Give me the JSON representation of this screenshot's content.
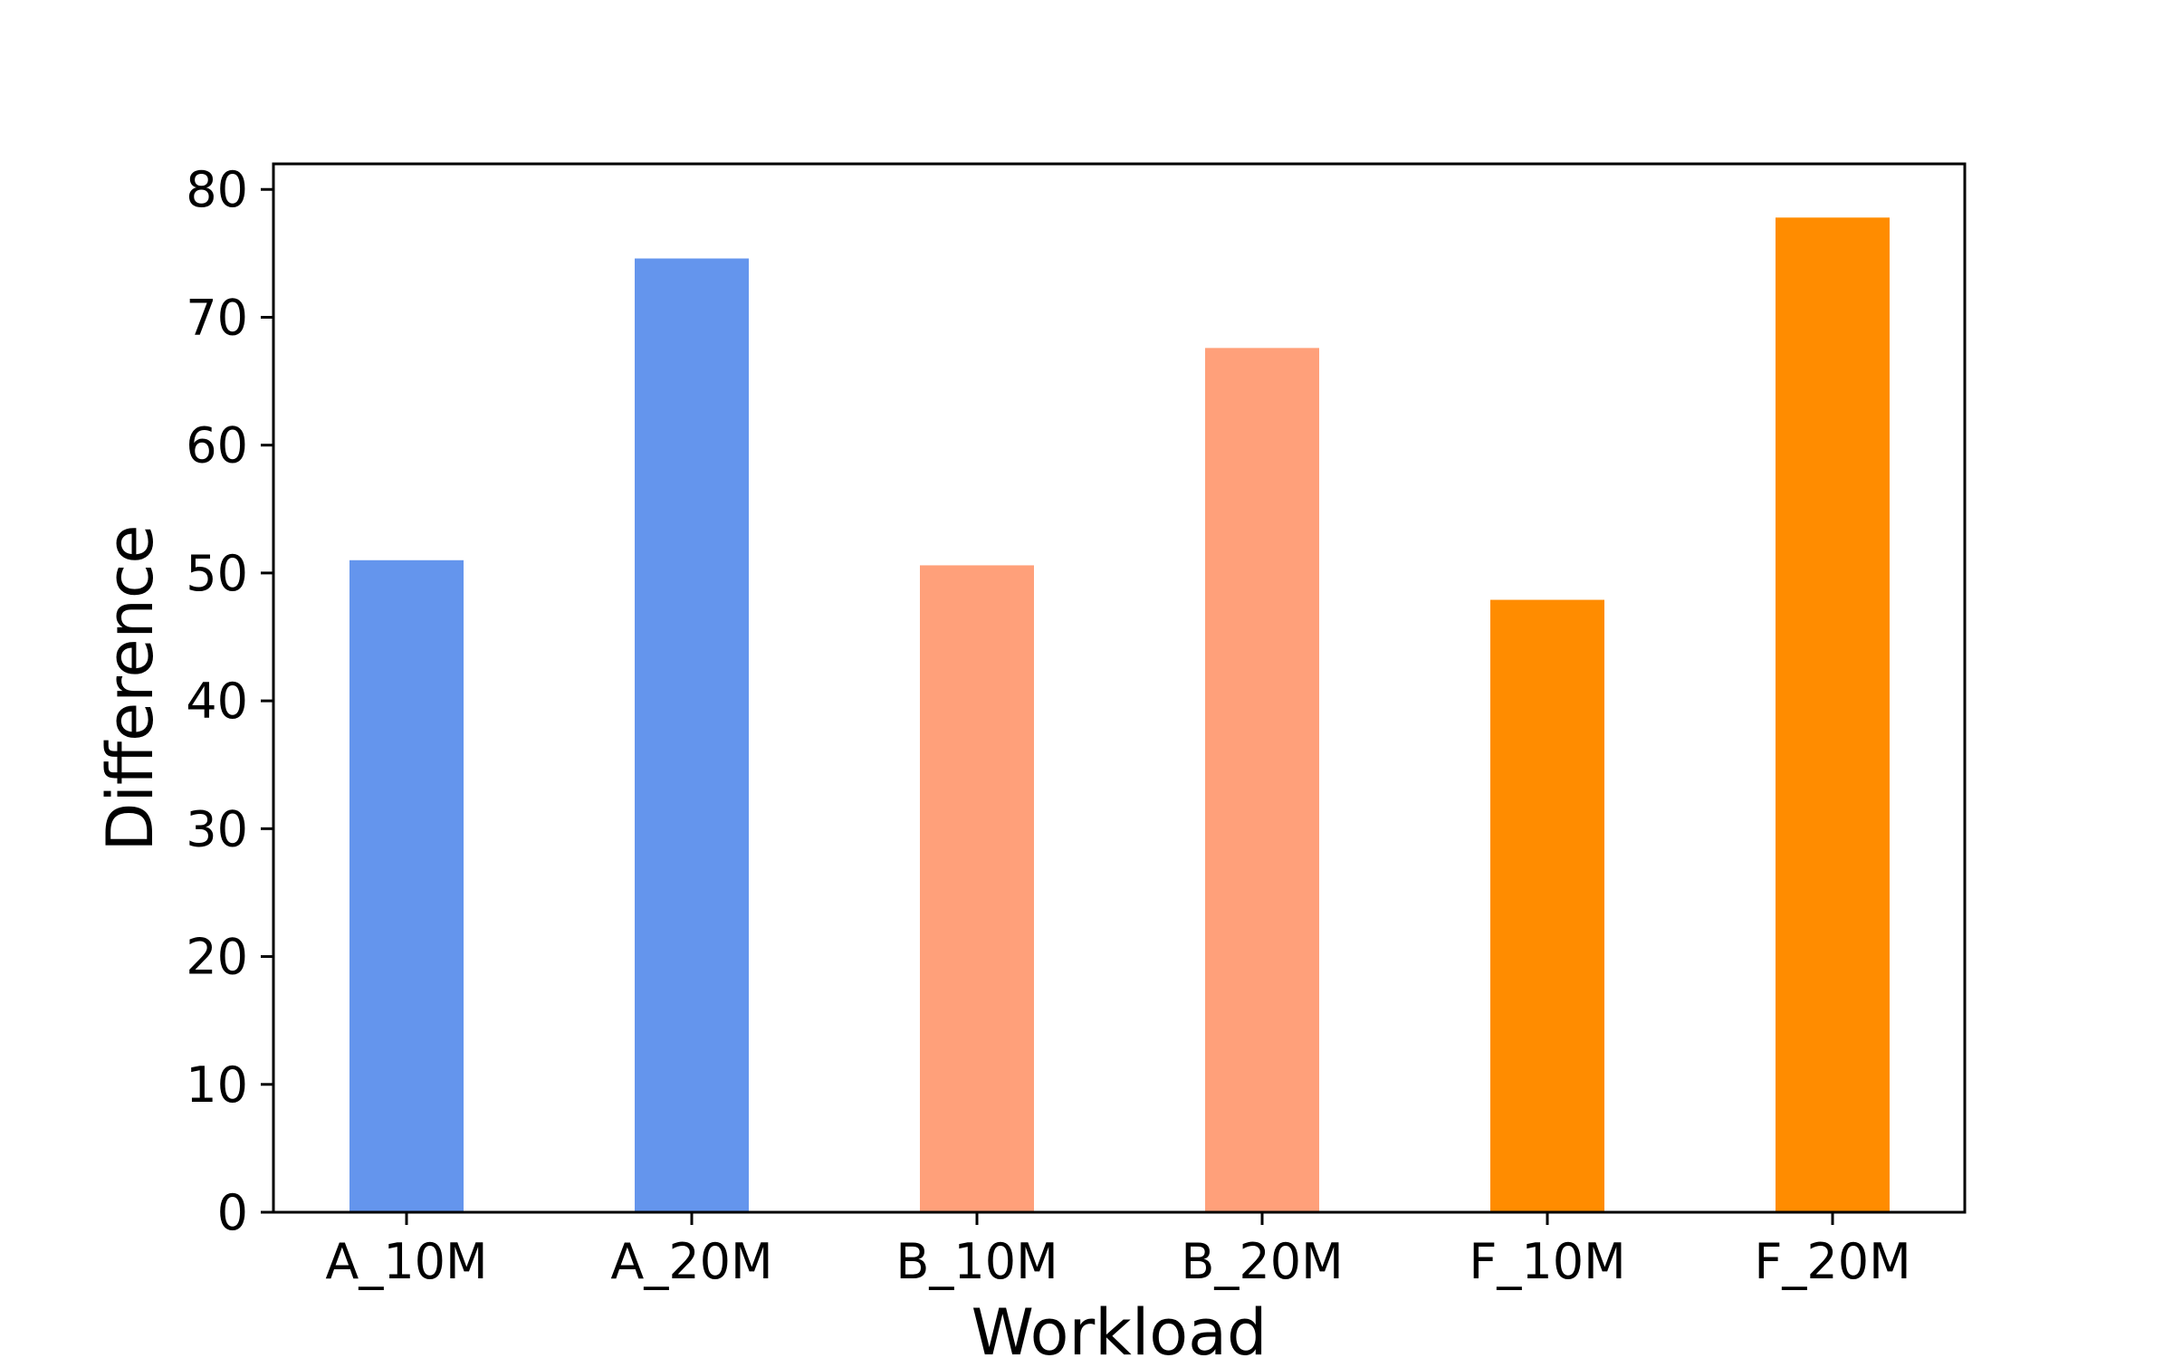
{
  "chart_data": {
    "type": "bar",
    "title": "",
    "xlabel": "Workload",
    "ylabel": "Difference",
    "categories": [
      "A_10M",
      "A_20M",
      "B_10M",
      "B_20M",
      "F_10M",
      "F_20M"
    ],
    "values": [
      51,
      74.6,
      50.6,
      67.6,
      47.9,
      77.8
    ],
    "bar_colors": [
      "#6495ED",
      "#6495ED",
      "#FFA07A",
      "#FFA07A",
      "#FF8C00",
      "#FF8C00"
    ],
    "ylim": [
      0,
      82
    ],
    "yticks": [
      0,
      10,
      20,
      30,
      40,
      50,
      60,
      70,
      80
    ],
    "grid": false,
    "legend": "none"
  }
}
